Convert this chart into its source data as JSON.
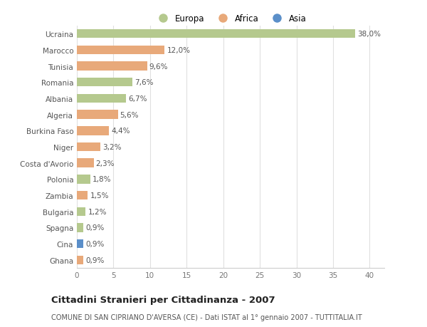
{
  "countries": [
    "Ucraina",
    "Marocco",
    "Tunisia",
    "Romania",
    "Albania",
    "Algeria",
    "Burkina Faso",
    "Niger",
    "Costa d'Avorio",
    "Polonia",
    "Zambia",
    "Bulgaria",
    "Spagna",
    "Cina",
    "Ghana"
  ],
  "values": [
    38.0,
    12.0,
    9.6,
    7.6,
    6.7,
    5.6,
    4.4,
    3.2,
    2.3,
    1.8,
    1.5,
    1.2,
    0.9,
    0.9,
    0.9
  ],
  "labels": [
    "38,0%",
    "12,0%",
    "9,6%",
    "7,6%",
    "6,7%",
    "5,6%",
    "4,4%",
    "3,2%",
    "2,3%",
    "1,8%",
    "1,5%",
    "1,2%",
    "0,9%",
    "0,9%",
    "0,9%"
  ],
  "continents": [
    "Europa",
    "Africa",
    "Africa",
    "Europa",
    "Europa",
    "Africa",
    "Africa",
    "Africa",
    "Africa",
    "Europa",
    "Africa",
    "Europa",
    "Europa",
    "Asia",
    "Africa"
  ],
  "colors": {
    "Europa": "#b5c98e",
    "Africa": "#e8a97a",
    "Asia": "#5b8fc9"
  },
  "xlim": [
    0,
    42
  ],
  "xticks": [
    0,
    5,
    10,
    15,
    20,
    25,
    30,
    35,
    40
  ],
  "title": "Cittadini Stranieri per Cittadinanza - 2007",
  "subtitle": "COMUNE DI SAN CIPRIANO D'AVERSA (CE) - Dati ISTAT al 1° gennaio 2007 - TUTTITALIA.IT",
  "background_color": "#ffffff",
  "grid_color": "#e0e0e0",
  "bar_height": 0.55,
  "label_fontsize": 7.5,
  "tick_fontsize": 7.5,
  "title_fontsize": 9.5,
  "subtitle_fontsize": 7.0
}
